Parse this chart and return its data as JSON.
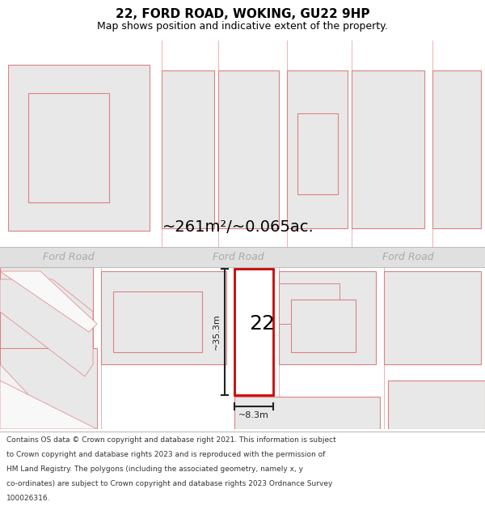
{
  "title": "22, FORD ROAD, WOKING, GU22 9HP",
  "subtitle": "Map shows position and indicative extent of the property.",
  "area_label": "~261m²/~0.065ac.",
  "road_label": "Ford Road",
  "property_number": "22",
  "dim_height": "~35.3m",
  "dim_width": "~8.3m",
  "footer_lines": [
    "Contains OS data © Crown copyright and database right 2021. This information is subject",
    "to Crown copyright and database rights 2023 and is reproduced with the permission of",
    "HM Land Registry. The polygons (including the associated geometry, namely x, y",
    "co-ordinates) are subject to Crown copyright and database rights 2023 Ordnance Survey",
    "100026316."
  ],
  "bg_color": "#ffffff",
  "map_bg": "#f2f2f2",
  "road_bg": "#e0e0e0",
  "poly_fill": "#e8e8e8",
  "poly_stroke": "#e08080",
  "highlight_fill": "#ffffff",
  "highlight_stroke": "#cc0000",
  "road_line_color": "#bbbbbb",
  "dim_color": "#222222",
  "title_color": "#000000",
  "road_text_color": "#aaaaaa",
  "footer_color": "#333333",
  "area_label_size": 14,
  "title_size": 11,
  "subtitle_size": 9,
  "road_label_size": 9,
  "property_num_size": 18,
  "dim_label_size": 8,
  "footer_size": 6.5
}
